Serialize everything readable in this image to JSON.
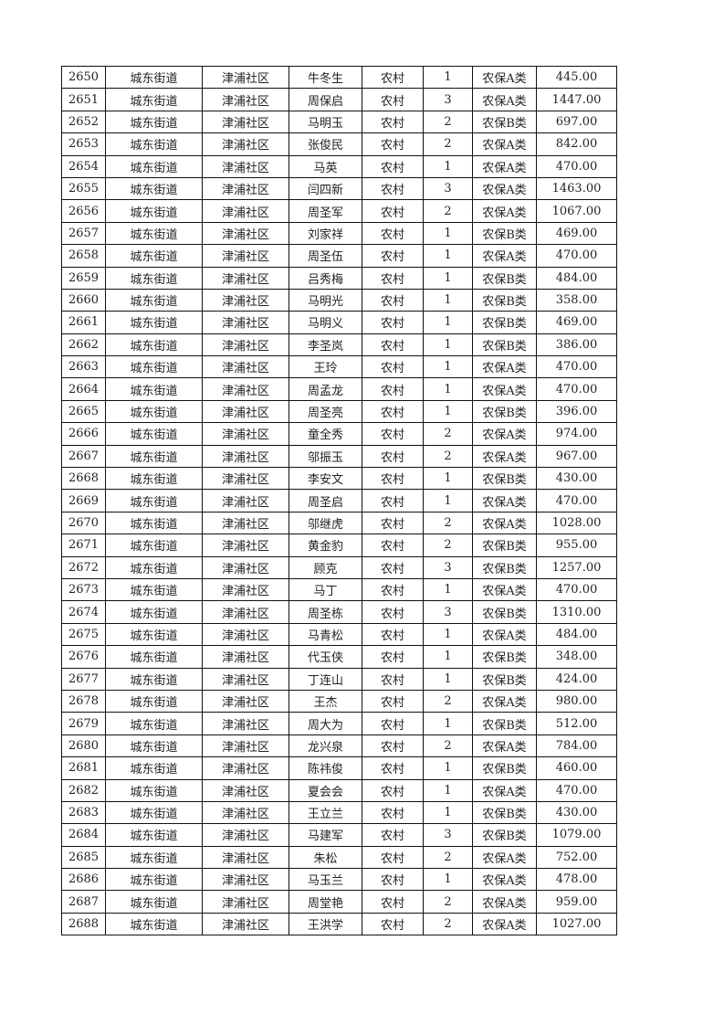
{
  "table": {
    "rows": [
      [
        "2650",
        "城东街道",
        "津浦社区",
        "牛冬生",
        "农村",
        "1",
        "农保A类",
        "445.00"
      ],
      [
        "2651",
        "城东街道",
        "津浦社区",
        "周保启",
        "农村",
        "3",
        "农保A类",
        "1447.00"
      ],
      [
        "2652",
        "城东街道",
        "津浦社区",
        "马明玉",
        "农村",
        "2",
        "农保B类",
        "697.00"
      ],
      [
        "2653",
        "城东街道",
        "津浦社区",
        "张俊民",
        "农村",
        "2",
        "农保A类",
        "842.00"
      ],
      [
        "2654",
        "城东街道",
        "津浦社区",
        "马英",
        "农村",
        "1",
        "农保A类",
        "470.00"
      ],
      [
        "2655",
        "城东街道",
        "津浦社区",
        "闫四新",
        "农村",
        "3",
        "农保A类",
        "1463.00"
      ],
      [
        "2656",
        "城东街道",
        "津浦社区",
        "周圣军",
        "农村",
        "2",
        "农保A类",
        "1067.00"
      ],
      [
        "2657",
        "城东街道",
        "津浦社区",
        "刘家祥",
        "农村",
        "1",
        "农保B类",
        "469.00"
      ],
      [
        "2658",
        "城东街道",
        "津浦社区",
        "周圣伍",
        "农村",
        "1",
        "农保A类",
        "470.00"
      ],
      [
        "2659",
        "城东街道",
        "津浦社区",
        "吕秀梅",
        "农村",
        "1",
        "农保B类",
        "484.00"
      ],
      [
        "2660",
        "城东街道",
        "津浦社区",
        "马明光",
        "农村",
        "1",
        "农保B类",
        "358.00"
      ],
      [
        "2661",
        "城东街道",
        "津浦社区",
        "马明义",
        "农村",
        "1",
        "农保B类",
        "469.00"
      ],
      [
        "2662",
        "城东街道",
        "津浦社区",
        "李圣岚",
        "农村",
        "1",
        "农保B类",
        "386.00"
      ],
      [
        "2663",
        "城东街道",
        "津浦社区",
        "王玲",
        "农村",
        "1",
        "农保A类",
        "470.00"
      ],
      [
        "2664",
        "城东街道",
        "津浦社区",
        "周孟龙",
        "农村",
        "1",
        "农保A类",
        "470.00"
      ],
      [
        "2665",
        "城东街道",
        "津浦社区",
        "周圣亮",
        "农村",
        "1",
        "农保B类",
        "396.00"
      ],
      [
        "2666",
        "城东街道",
        "津浦社区",
        "童全秀",
        "农村",
        "2",
        "农保A类",
        "974.00"
      ],
      [
        "2667",
        "城东街道",
        "津浦社区",
        "邬振玉",
        "农村",
        "2",
        "农保A类",
        "967.00"
      ],
      [
        "2668",
        "城东街道",
        "津浦社区",
        "李安文",
        "农村",
        "1",
        "农保B类",
        "430.00"
      ],
      [
        "2669",
        "城东街道",
        "津浦社区",
        "周圣启",
        "农村",
        "1",
        "农保A类",
        "470.00"
      ],
      [
        "2670",
        "城东街道",
        "津浦社区",
        "邬继虎",
        "农村",
        "2",
        "农保A类",
        "1028.00"
      ],
      [
        "2671",
        "城东街道",
        "津浦社区",
        "黄金豹",
        "农村",
        "2",
        "农保B类",
        "955.00"
      ],
      [
        "2672",
        "城东街道",
        "津浦社区",
        "顾克",
        "农村",
        "3",
        "农保B类",
        "1257.00"
      ],
      [
        "2673",
        "城东街道",
        "津浦社区",
        "马丁",
        "农村",
        "1",
        "农保A类",
        "470.00"
      ],
      [
        "2674",
        "城东街道",
        "津浦社区",
        "周圣栋",
        "农村",
        "3",
        "农保B类",
        "1310.00"
      ],
      [
        "2675",
        "城东街道",
        "津浦社区",
        "马青松",
        "农村",
        "1",
        "农保A类",
        "484.00"
      ],
      [
        "2676",
        "城东街道",
        "津浦社区",
        "代玉侠",
        "农村",
        "1",
        "农保B类",
        "348.00"
      ],
      [
        "2677",
        "城东街道",
        "津浦社区",
        "丁连山",
        "农村",
        "1",
        "农保B类",
        "424.00"
      ],
      [
        "2678",
        "城东街道",
        "津浦社区",
        "王杰",
        "农村",
        "2",
        "农保A类",
        "980.00"
      ],
      [
        "2679",
        "城东街道",
        "津浦社区",
        "周大为",
        "农村",
        "1",
        "农保B类",
        "512.00"
      ],
      [
        "2680",
        "城东街道",
        "津浦社区",
        "龙兴泉",
        "农村",
        "2",
        "农保A类",
        "784.00"
      ],
      [
        "2681",
        "城东街道",
        "津浦社区",
        "陈祎俊",
        "农村",
        "1",
        "农保B类",
        "460.00"
      ],
      [
        "2682",
        "城东街道",
        "津浦社区",
        "夏会会",
        "农村",
        "1",
        "农保A类",
        "470.00"
      ],
      [
        "2683",
        "城东街道",
        "津浦社区",
        "王立兰",
        "农村",
        "1",
        "农保B类",
        "430.00"
      ],
      [
        "2684",
        "城东街道",
        "津浦社区",
        "马建军",
        "农村",
        "3",
        "农保B类",
        "1079.00"
      ],
      [
        "2685",
        "城东街道",
        "津浦社区",
        "朱松",
        "农村",
        "2",
        "农保A类",
        "752.00"
      ],
      [
        "2686",
        "城东街道",
        "津浦社区",
        "马玉兰",
        "农村",
        "1",
        "农保A类",
        "478.00"
      ],
      [
        "2687",
        "城东街道",
        "津浦社区",
        "周堂艳",
        "农村",
        "2",
        "农保A类",
        "959.00"
      ],
      [
        "2688",
        "城东街道",
        "津浦社区",
        "王洪学",
        "农村",
        "2",
        "农保A类",
        "1027.00"
      ]
    ]
  }
}
